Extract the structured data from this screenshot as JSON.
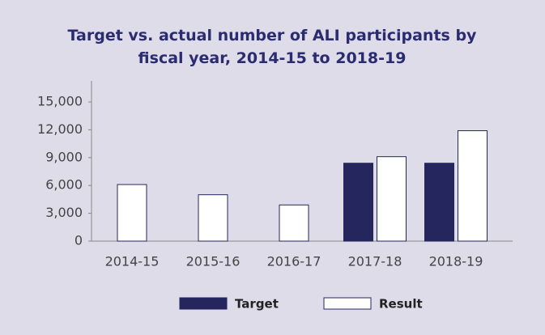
{
  "chart_data": {
    "type": "bar",
    "title": "Target vs. actual number of ALI participants by fiscal year, 2014-15 to 2018-19",
    "categories": [
      "2014-15",
      "2015-16",
      "2016-17",
      "2017-18",
      "2018-19"
    ],
    "series": [
      {
        "name": "Target",
        "color": "#26265f",
        "values": [
          null,
          null,
          null,
          8400,
          8400
        ]
      },
      {
        "name": "Result",
        "color": "#ffffff",
        "values": [
          6100,
          5000,
          3900,
          9100,
          11900
        ]
      }
    ],
    "ylim": [
      0,
      15000
    ],
    "yticks": [
      0,
      {
        "value": 3000,
        "label": "3,000"
      },
      {
        "value": 6000,
        "label": "6,000"
      },
      {
        "value": 9000,
        "label": "9,000"
      },
      {
        "value": 12000,
        "label": "12,000"
      },
      {
        "value": 15000,
        "label": "15,000"
      }
    ],
    "legend": "bottom"
  }
}
